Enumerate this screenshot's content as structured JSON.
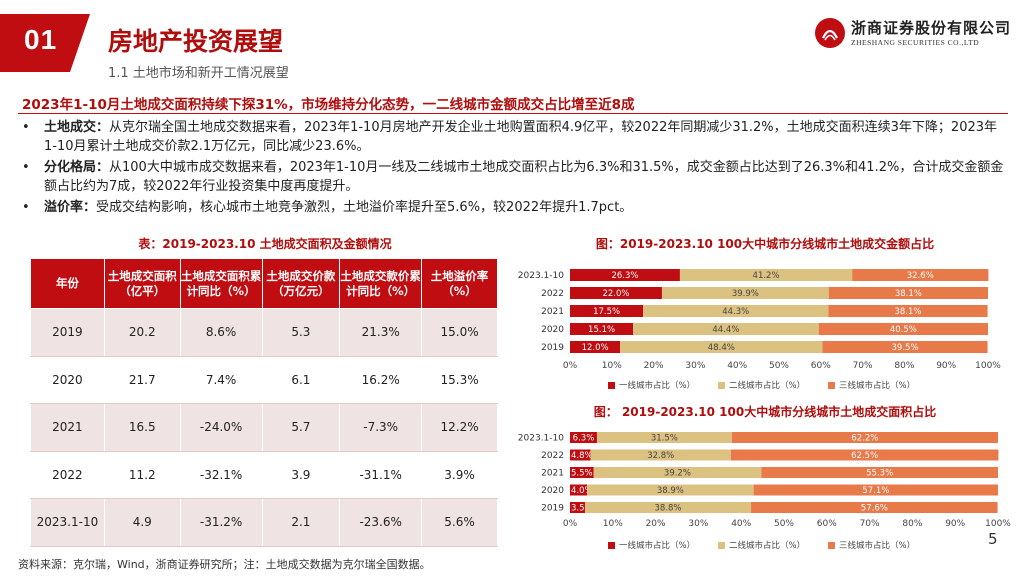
{
  "header": {
    "section_number": "01",
    "section_title": "房地产投资展望",
    "subsection": "1.1  土地市场和新开工情况展望",
    "logo_cn": "浙商证券股份有限公司",
    "logo_en": "ZHESHANG SECURITIES CO.,LTD",
    "brand_color": "#c00d12"
  },
  "headline": "2023年1-10月土地成交面积持续下探31%，市场维持分化态势，一二线城市金额成交占比增至近8成",
  "bullets": [
    {
      "marker": "•",
      "label": "土地成交：",
      "text": "从克尔瑞全国土地成交数据来看，2023年1-10月房地产开发企业土地购置面积4.9亿平，较2022年同期减少31.2%，土地成交面积连续3年下降；2023年1-10月累计土地成交价款2.1万亿元，同比减少23.6%。"
    },
    {
      "marker": "•",
      "label": "分化格局：",
      "text": "从100大中城市成交数据来看，2023年1-10月一线及二线城市土地成交面积占比为6.3%和31.5%，成交金额占比达到了26.3%和41.2%，合计成交金额金额占比约为7成，较2022年行业投资集中度再度提升。"
    },
    {
      "marker": "•",
      "label": "溢价率：",
      "text": "受成交结构影响，核心城市土地竞争激烈，土地溢价率提升至5.6%，较2022年提升1.7pct。"
    }
  ],
  "table": {
    "title": "表：2019-2023.10 土地成交面积及金额情况",
    "headers": [
      "年份",
      "土地成交面积\n（亿平）",
      "土地成交面积累\n计同比（%）",
      "土地成交价款\n（万亿元）",
      "土地成交款价累\n计同比（%）",
      "土地溢价率\n（%）"
    ],
    "rows": [
      [
        "2019",
        "20.2",
        "8.6%",
        "5.3",
        "21.3%",
        "15.0%"
      ],
      [
        "2020",
        "21.7",
        "7.4%",
        "6.1",
        "16.2%",
        "15.3%"
      ],
      [
        "2021",
        "16.5",
        "-24.0%",
        "5.7",
        "-7.3%",
        "12.2%"
      ],
      [
        "2022",
        "11.2",
        "-32.1%",
        "3.9",
        "-31.1%",
        "3.9%"
      ],
      [
        "2023.1-10",
        "4.9",
        "-31.2%",
        "2.1",
        "-23.6%",
        "5.6%"
      ]
    ]
  },
  "chart_data": [
    {
      "type": "bar",
      "stacked": true,
      "orientation": "horizontal",
      "title": "图：2019-2023.10 100大中城市分线城市土地成交金额占比",
      "categories": [
        "2023.1-10",
        "2022",
        "2021",
        "2020",
        "2019"
      ],
      "series": [
        {
          "name": "一线城市占比（%）",
          "values": [
            26.3,
            22.0,
            17.5,
            15.1,
            12.0
          ],
          "labels": [
            "26.3%",
            "22.0%",
            "17.5%",
            "15.1%",
            "12.0%"
          ],
          "color": "#c00d12"
        },
        {
          "name": "二线城市占比（%）",
          "values": [
            41.2,
            39.9,
            44.3,
            44.4,
            48.4
          ],
          "labels": [
            "41.2%",
            "39.9%",
            "44.3%",
            "44.4%",
            "48.4%"
          ],
          "color": "#dcc281"
        },
        {
          "name": "三线城市占比（%）",
          "values": [
            32.6,
            38.1,
            38.1,
            40.5,
            39.5
          ],
          "labels": [
            "32.6%",
            "38.1%",
            "38.1%",
            "40.5%",
            "39.5%"
          ],
          "color": "#e87a4a"
        }
      ],
      "xticks": [
        "0%",
        "10%",
        "20%",
        "30%",
        "40%",
        "50%",
        "60%",
        "70%",
        "80%",
        "90%",
        "100%"
      ],
      "xlim": [
        0,
        100
      ],
      "grid": false,
      "legend": "bottom"
    },
    {
      "type": "bar",
      "stacked": true,
      "orientation": "horizontal",
      "title": "图：  2019-2023.10 100大中城市分线城市土地成交面积占比",
      "categories": [
        "2023.1-10",
        "2022",
        "2021",
        "2020",
        "2019"
      ],
      "series": [
        {
          "name": "一线城市占比（%）",
          "values": [
            6.3,
            4.8,
            5.5,
            4.0,
            3.5
          ],
          "labels": [
            "6.3%",
            "4.8%",
            "5.5%",
            "4.0%",
            "3.5%"
          ],
          "color": "#c00d12"
        },
        {
          "name": "二线城市占比（%）",
          "values": [
            31.5,
            32.8,
            39.2,
            38.9,
            38.8
          ],
          "labels": [
            "31.5%",
            "32.8%",
            "39.2%",
            "38.9%",
            "38.8%"
          ],
          "color": "#dcc281"
        },
        {
          "name": "三线城市占比（%）",
          "values": [
            62.2,
            62.5,
            55.3,
            57.1,
            57.6
          ],
          "labels": [
            "62.2%",
            "62.5%",
            "55.3%",
            "57.1%",
            "57.6%"
          ],
          "color": "#e87a4a"
        }
      ],
      "xticks": [
        "0%",
        "10%",
        "20%",
        "30%",
        "40%",
        "50%",
        "60%",
        "70%",
        "80%",
        "90%",
        "100%"
      ],
      "xlim": [
        0,
        100
      ],
      "grid": false,
      "legend": "bottom"
    }
  ],
  "footer": {
    "source": "资料来源：克尔瑞，Wind，浙商证券研究所；注：土地成交数据为克尔瑞全国数据。",
    "page_number": "5"
  }
}
